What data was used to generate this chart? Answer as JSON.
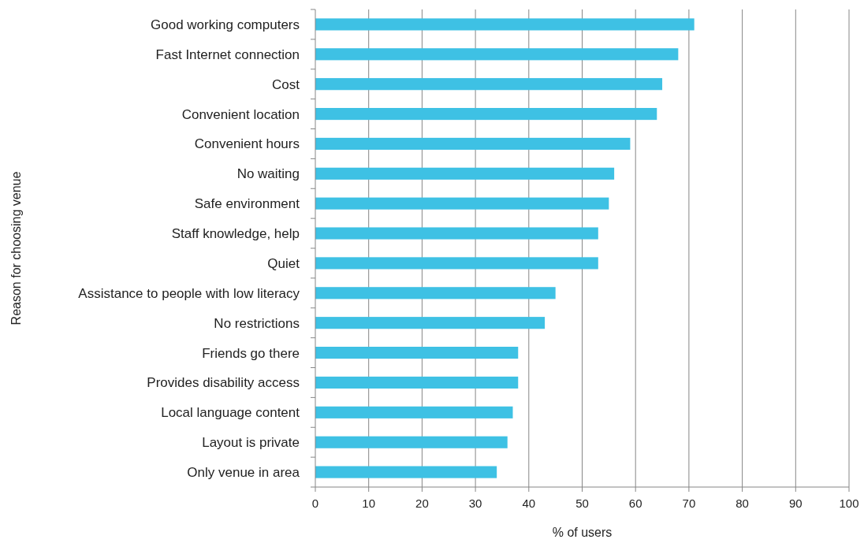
{
  "chart_data": {
    "type": "bar",
    "orientation": "horizontal",
    "xlabel": "% of users",
    "ylabel": "Reason for choosing venue",
    "categories": [
      "Good working computers",
      "Fast Internet connection",
      "Cost",
      "Convenient location",
      "Convenient hours",
      "No waiting",
      "Safe environment",
      "Staff knowledge, help",
      "Quiet",
      "Assistance to people with low literacy",
      "No restrictions",
      "Friends go there",
      "Provides disability access",
      "Local language content",
      "Layout is private",
      "Only venue in area"
    ],
    "values": [
      71,
      68,
      65,
      64,
      59,
      56,
      55,
      53,
      53,
      45,
      43,
      38,
      38,
      37,
      36,
      34
    ],
    "color": "#3ec1e4",
    "xlim": [
      0,
      100
    ],
    "xticks": [
      0,
      10,
      20,
      30,
      40,
      50,
      60,
      70,
      80,
      90,
      100
    ],
    "grid": "x"
  }
}
